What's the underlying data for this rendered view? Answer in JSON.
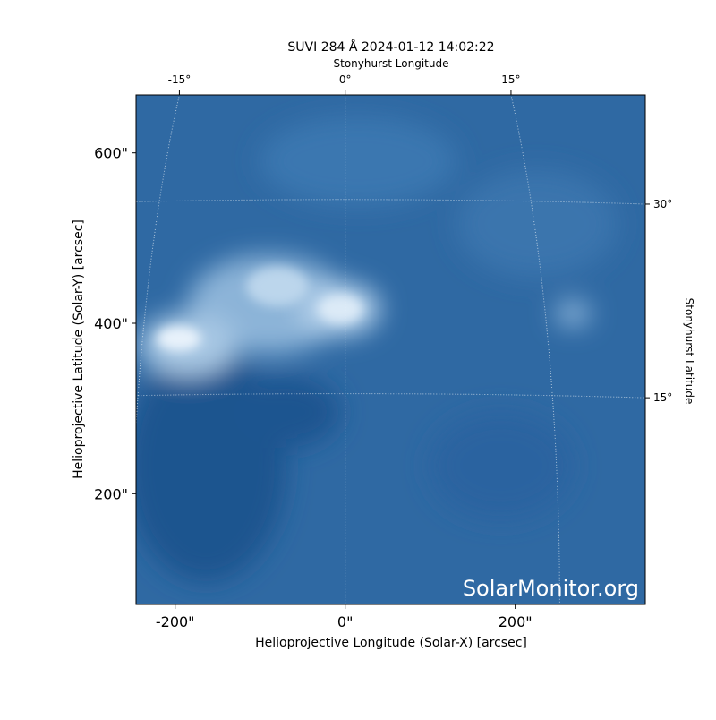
{
  "chart_data": {
    "type": "image",
    "title": "SUVI 284 Å 2024-01-12 14:02:22",
    "xlabel": "Helioprojective Longitude (Solar-X) [arcsec]",
    "ylabel": "Helioprojective Latitude (Solar-Y) [arcsec]",
    "top_label": "Stonyhurst Longitude",
    "right_label": "Stonyhurst Latitude",
    "watermark": "SolarMonitor.org",
    "xlim": [
      -246,
      353
    ],
    "ylim": [
      70,
      668
    ],
    "xticks": [
      {
        "value": -200,
        "label": "-200\""
      },
      {
        "value": 0,
        "label": "0\""
      },
      {
        "value": 200,
        "label": "200\""
      }
    ],
    "yticks": [
      {
        "value": 200,
        "label": "200\""
      },
      {
        "value": 400,
        "label": "400\""
      },
      {
        "value": 600,
        "label": "600\""
      }
    ],
    "lon_ticks": [
      {
        "value": -15,
        "label": "-15°"
      },
      {
        "value": 0,
        "label": "0°"
      },
      {
        "value": 15,
        "label": "15°"
      }
    ],
    "lat_ticks": [
      {
        "value": 15,
        "label": "15°"
      },
      {
        "value": 30,
        "label": "30°"
      }
    ]
  }
}
